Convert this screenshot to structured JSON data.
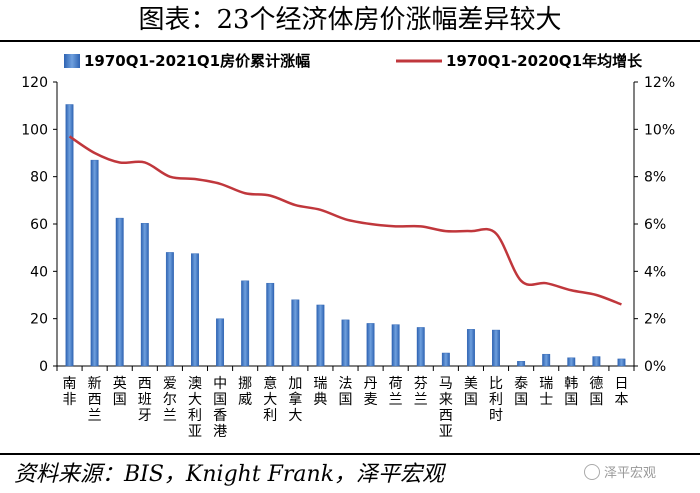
{
  "page": {
    "title": "图表：23个经济体房价涨幅差异较大",
    "source": "资料来源：BIS，Knight Frank，泽平宏观",
    "watermark": "泽平宏观"
  },
  "colors": {
    "bar": "#2e63b2",
    "bar_light": "#6fa0de",
    "line": "#c0373c",
    "axis": "#000000"
  },
  "chart_data": {
    "type": "bar+line",
    "title": "图表：23个经济体房价涨幅差异较大",
    "categories": [
      "南非",
      "新西兰",
      "英国",
      "西班牙",
      "爱尔兰",
      "澳大利亚",
      "中国香港",
      "挪威",
      "意大利",
      "加拿大",
      "瑞典",
      "法国",
      "丹麦",
      "荷兰",
      "芬兰",
      "马来西亚",
      "美国",
      "比利时",
      "泰国",
      "瑞士",
      "韩国",
      "德国",
      "日本"
    ],
    "series": [
      {
        "name": "1970Q1-2021Q1房价累计涨幅",
        "type": "bar",
        "axis": "left",
        "values": [
          110.5,
          87,
          62.5,
          60.3,
          48,
          47.5,
          20,
          36,
          35,
          28,
          25.8,
          19.5,
          18,
          17.5,
          16.3,
          5.5,
          15.5,
          15.2,
          2,
          5,
          3.5,
          4,
          3
        ]
      },
      {
        "name": "1970Q1-2020Q1年均增长",
        "type": "line",
        "axis": "right",
        "values": [
          9.7,
          9.0,
          8.6,
          8.6,
          8.0,
          7.9,
          7.7,
          7.3,
          7.2,
          6.8,
          6.6,
          6.2,
          6.0,
          5.9,
          5.9,
          5.7,
          5.7,
          5.6,
          3.6,
          3.5,
          3.2,
          3.0,
          2.6
        ]
      }
    ],
    "y_left": {
      "min": 0,
      "max": 120,
      "ticks": [
        0,
        20,
        40,
        60,
        80,
        100,
        120
      ]
    },
    "y_right": {
      "min": 0,
      "max": 12,
      "ticks": [
        0,
        2,
        4,
        6,
        8,
        10,
        12
      ],
      "labels": [
        "0%",
        "2%",
        "4%",
        "6%",
        "8%",
        "10%",
        "12%"
      ]
    },
    "legend_position": "top"
  }
}
